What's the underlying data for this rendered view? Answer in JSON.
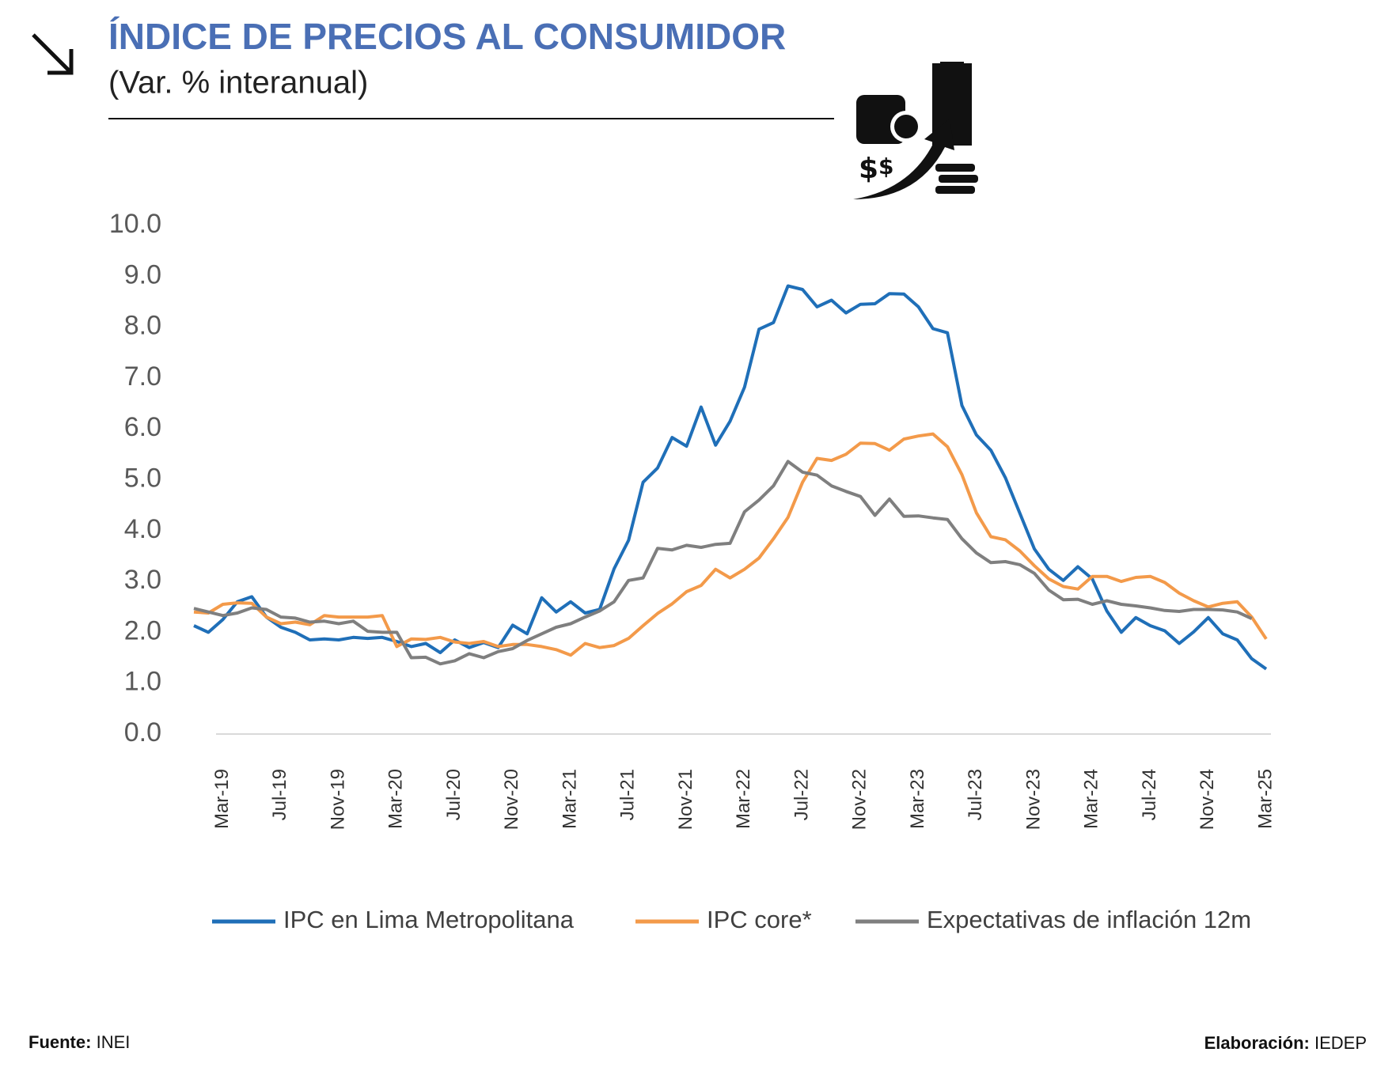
{
  "chart_data": {
    "type": "line",
    "title": "ÍNDICE DE PRECIOS AL CONSUMIDOR",
    "subtitle": "(Var. % interanual)",
    "categories": [
      null,
      null,
      "Mar-19",
      null,
      null,
      null,
      "Jul-19",
      null,
      null,
      null,
      "Nov-19",
      null,
      null,
      null,
      "Mar-20",
      null,
      null,
      null,
      "Jul-20",
      null,
      null,
      null,
      "Nov-20",
      null,
      null,
      null,
      "Mar-21",
      null,
      null,
      null,
      "Jul-21",
      null,
      null,
      null,
      "Nov-21",
      null,
      null,
      null,
      "Mar-22",
      null,
      null,
      null,
      "Jul-22",
      null,
      null,
      null,
      "Nov-22",
      null,
      null,
      null,
      "Mar-23",
      null,
      null,
      null,
      "Jul-23",
      null,
      null,
      null,
      "Nov-23",
      null,
      null,
      null,
      "Mar-24",
      null,
      null,
      null,
      "Jul-24",
      null,
      null,
      null,
      "Nov-24",
      null,
      null,
      null,
      "Mar-25"
    ],
    "series": [
      {
        "name": "IPC en Lima Metropolitana",
        "color": "#1f6fb8",
        "values": [
          2.13,
          2.0,
          2.25,
          2.6,
          2.7,
          2.3,
          2.1,
          2.0,
          1.85,
          1.87,
          1.85,
          1.9,
          1.88,
          1.9,
          1.82,
          1.72,
          1.78,
          1.6,
          1.85,
          1.7,
          1.8,
          1.7,
          2.14,
          1.97,
          2.68,
          2.4,
          2.6,
          2.38,
          2.45,
          3.25,
          3.81,
          4.95,
          5.23,
          5.83,
          5.66,
          6.43,
          5.68,
          6.15,
          6.82,
          7.96,
          8.09,
          8.81,
          8.74,
          8.4,
          8.53,
          8.28,
          8.45,
          8.46,
          8.66,
          8.65,
          8.4,
          7.97,
          7.89,
          6.46,
          5.88,
          5.58,
          5.04,
          4.34,
          3.64,
          3.24,
          3.02,
          3.29,
          3.05,
          2.42,
          2.0,
          2.29,
          2.13,
          2.03,
          1.78,
          2.01,
          2.29,
          1.97,
          1.85,
          1.48,
          1.28
        ]
      },
      {
        "name": "IPC core*",
        "color": "#f39a4a",
        "values": [
          2.4,
          2.38,
          2.55,
          2.58,
          2.57,
          2.3,
          2.17,
          2.2,
          2.15,
          2.33,
          2.3,
          2.3,
          2.3,
          2.33,
          1.72,
          1.87,
          1.86,
          1.9,
          1.81,
          1.78,
          1.82,
          1.72,
          1.76,
          1.76,
          1.72,
          1.66,
          1.55,
          1.78,
          1.7,
          1.74,
          1.88,
          2.13,
          2.37,
          2.56,
          2.8,
          2.92,
          3.24,
          3.07,
          3.24,
          3.46,
          3.84,
          4.26,
          4.95,
          5.42,
          5.38,
          5.5,
          5.72,
          5.71,
          5.58,
          5.8,
          5.86,
          5.9,
          5.65,
          5.1,
          4.35,
          3.88,
          3.82,
          3.6,
          3.31,
          3.05,
          2.9,
          2.85,
          3.1,
          3.1,
          3.0,
          3.08,
          3.1,
          2.98,
          2.77,
          2.62,
          2.5,
          2.57,
          2.6,
          2.3,
          1.87
        ]
      },
      {
        "name": "Expectativas de inflación 12m",
        "color": "#7f7f7f",
        "values": [
          2.47,
          2.4,
          2.33,
          2.38,
          2.48,
          2.45,
          2.3,
          2.28,
          2.2,
          2.22,
          2.17,
          2.22,
          2.02,
          2.0,
          2.0,
          1.5,
          1.51,
          1.38,
          1.44,
          1.58,
          1.5,
          1.62,
          1.68,
          1.84,
          1.97,
          2.1,
          2.17,
          2.3,
          2.42,
          2.6,
          3.02,
          3.07,
          3.65,
          3.62,
          3.71,
          3.67,
          3.73,
          3.75,
          4.37,
          4.6,
          4.88,
          5.36,
          5.15,
          5.09,
          4.88,
          4.77,
          4.67,
          4.3,
          4.62,
          4.28,
          4.29,
          4.25,
          4.22,
          3.84,
          3.56,
          3.37,
          3.39,
          3.33,
          3.16,
          2.83,
          2.64,
          2.65,
          2.55,
          2.62,
          2.55,
          2.52,
          2.48,
          2.43,
          2.41,
          2.45,
          2.45,
          2.44,
          2.4,
          2.27,
          null
        ]
      }
    ],
    "ylim": [
      0,
      10
    ],
    "yticks": [
      {
        "value": 0,
        "label": "0.0"
      },
      {
        "value": 1,
        "label": "1.0"
      },
      {
        "value": 2,
        "label": "2.0"
      },
      {
        "value": 3,
        "label": "3.0"
      },
      {
        "value": 4,
        "label": "4.0"
      },
      {
        "value": 5,
        "label": "5.0"
      },
      {
        "value": 6,
        "label": "6.0"
      },
      {
        "value": 7,
        "label": "7.0"
      },
      {
        "value": 8,
        "label": "8.0"
      },
      {
        "value": 9,
        "label": "9.0"
      },
      {
        "value": 10,
        "label": "10.0"
      }
    ],
    "grid": false
  },
  "footer": {
    "source_label": "Fuente:",
    "source": "INEI",
    "credit_label": "Elaboración:",
    "credit": "IEDEP"
  }
}
